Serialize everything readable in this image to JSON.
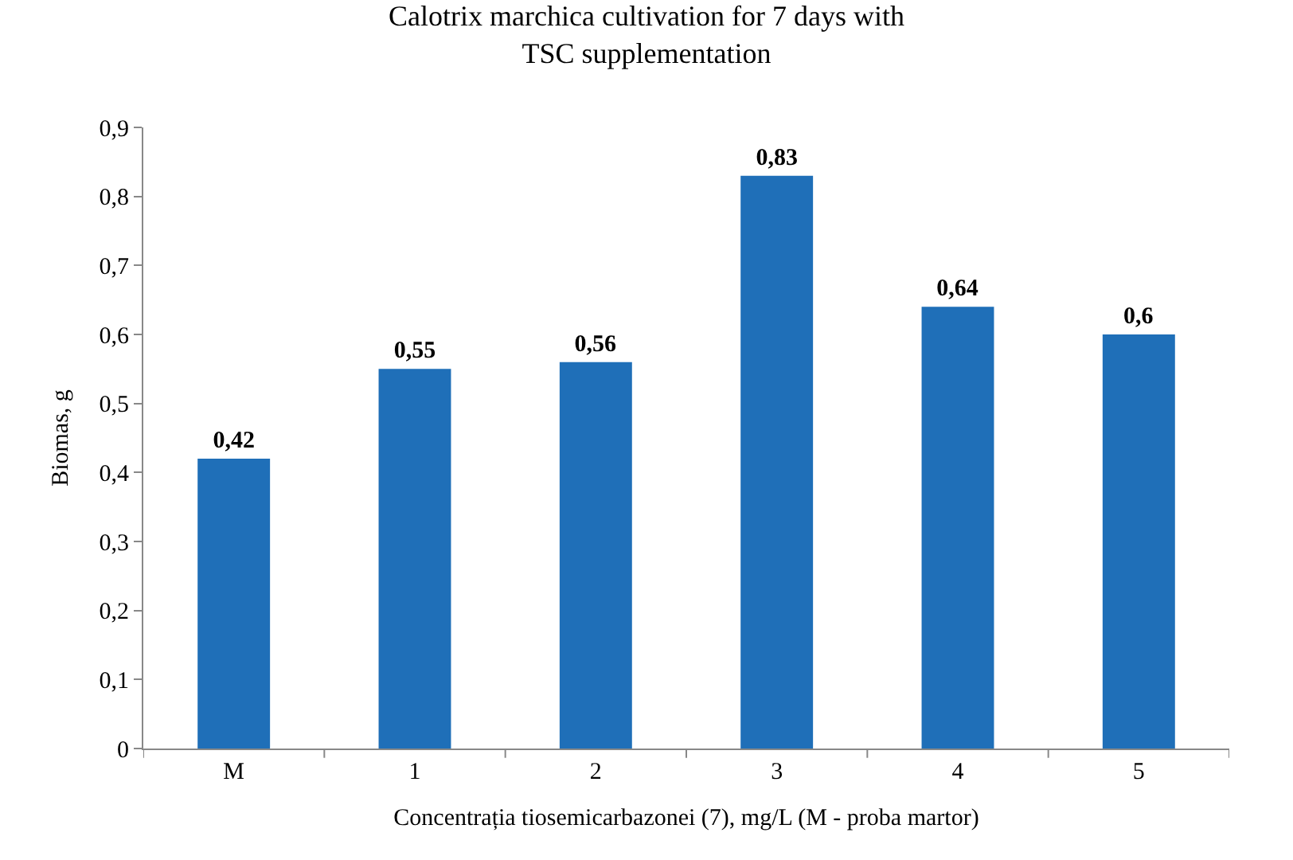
{
  "chart_data": {
    "type": "bar",
    "title": "Calotrix marchica cultivation for 7 days with TSC supplementation",
    "xlabel": "Concentrația tiosemicarbazonei (7), mg/L (M - proba martor)",
    "ylabel": "Biomas, g",
    "categories": [
      "M",
      "1",
      "2",
      "3",
      "4",
      "5"
    ],
    "values": [
      0.42,
      0.55,
      0.56,
      0.83,
      0.64,
      0.6
    ],
    "color": "#1f6fb8",
    "ylim": [
      0,
      0.9
    ],
    "yticks": [
      0,
      {
        "value": 0.1,
        "label": "0,1"
      },
      {
        "value": 0.2,
        "label": "0,2"
      },
      {
        "value": 0.3,
        "label": "0,3"
      },
      {
        "value": 0.4,
        "label": "0,4"
      },
      {
        "value": 0.5,
        "label": "0,5"
      },
      {
        "value": 0.6,
        "label": "0,6"
      },
      {
        "value": 0.7,
        "label": "0,7"
      },
      {
        "value": 0.8,
        "label": "0,8"
      },
      {
        "value": 0.9,
        "label": "0,9"
      }
    ],
    "value_labels": [
      "0,42",
      "0,55",
      "0,56",
      "0,83",
      "0,64",
      "0,6"
    ],
    "legend": false
  }
}
